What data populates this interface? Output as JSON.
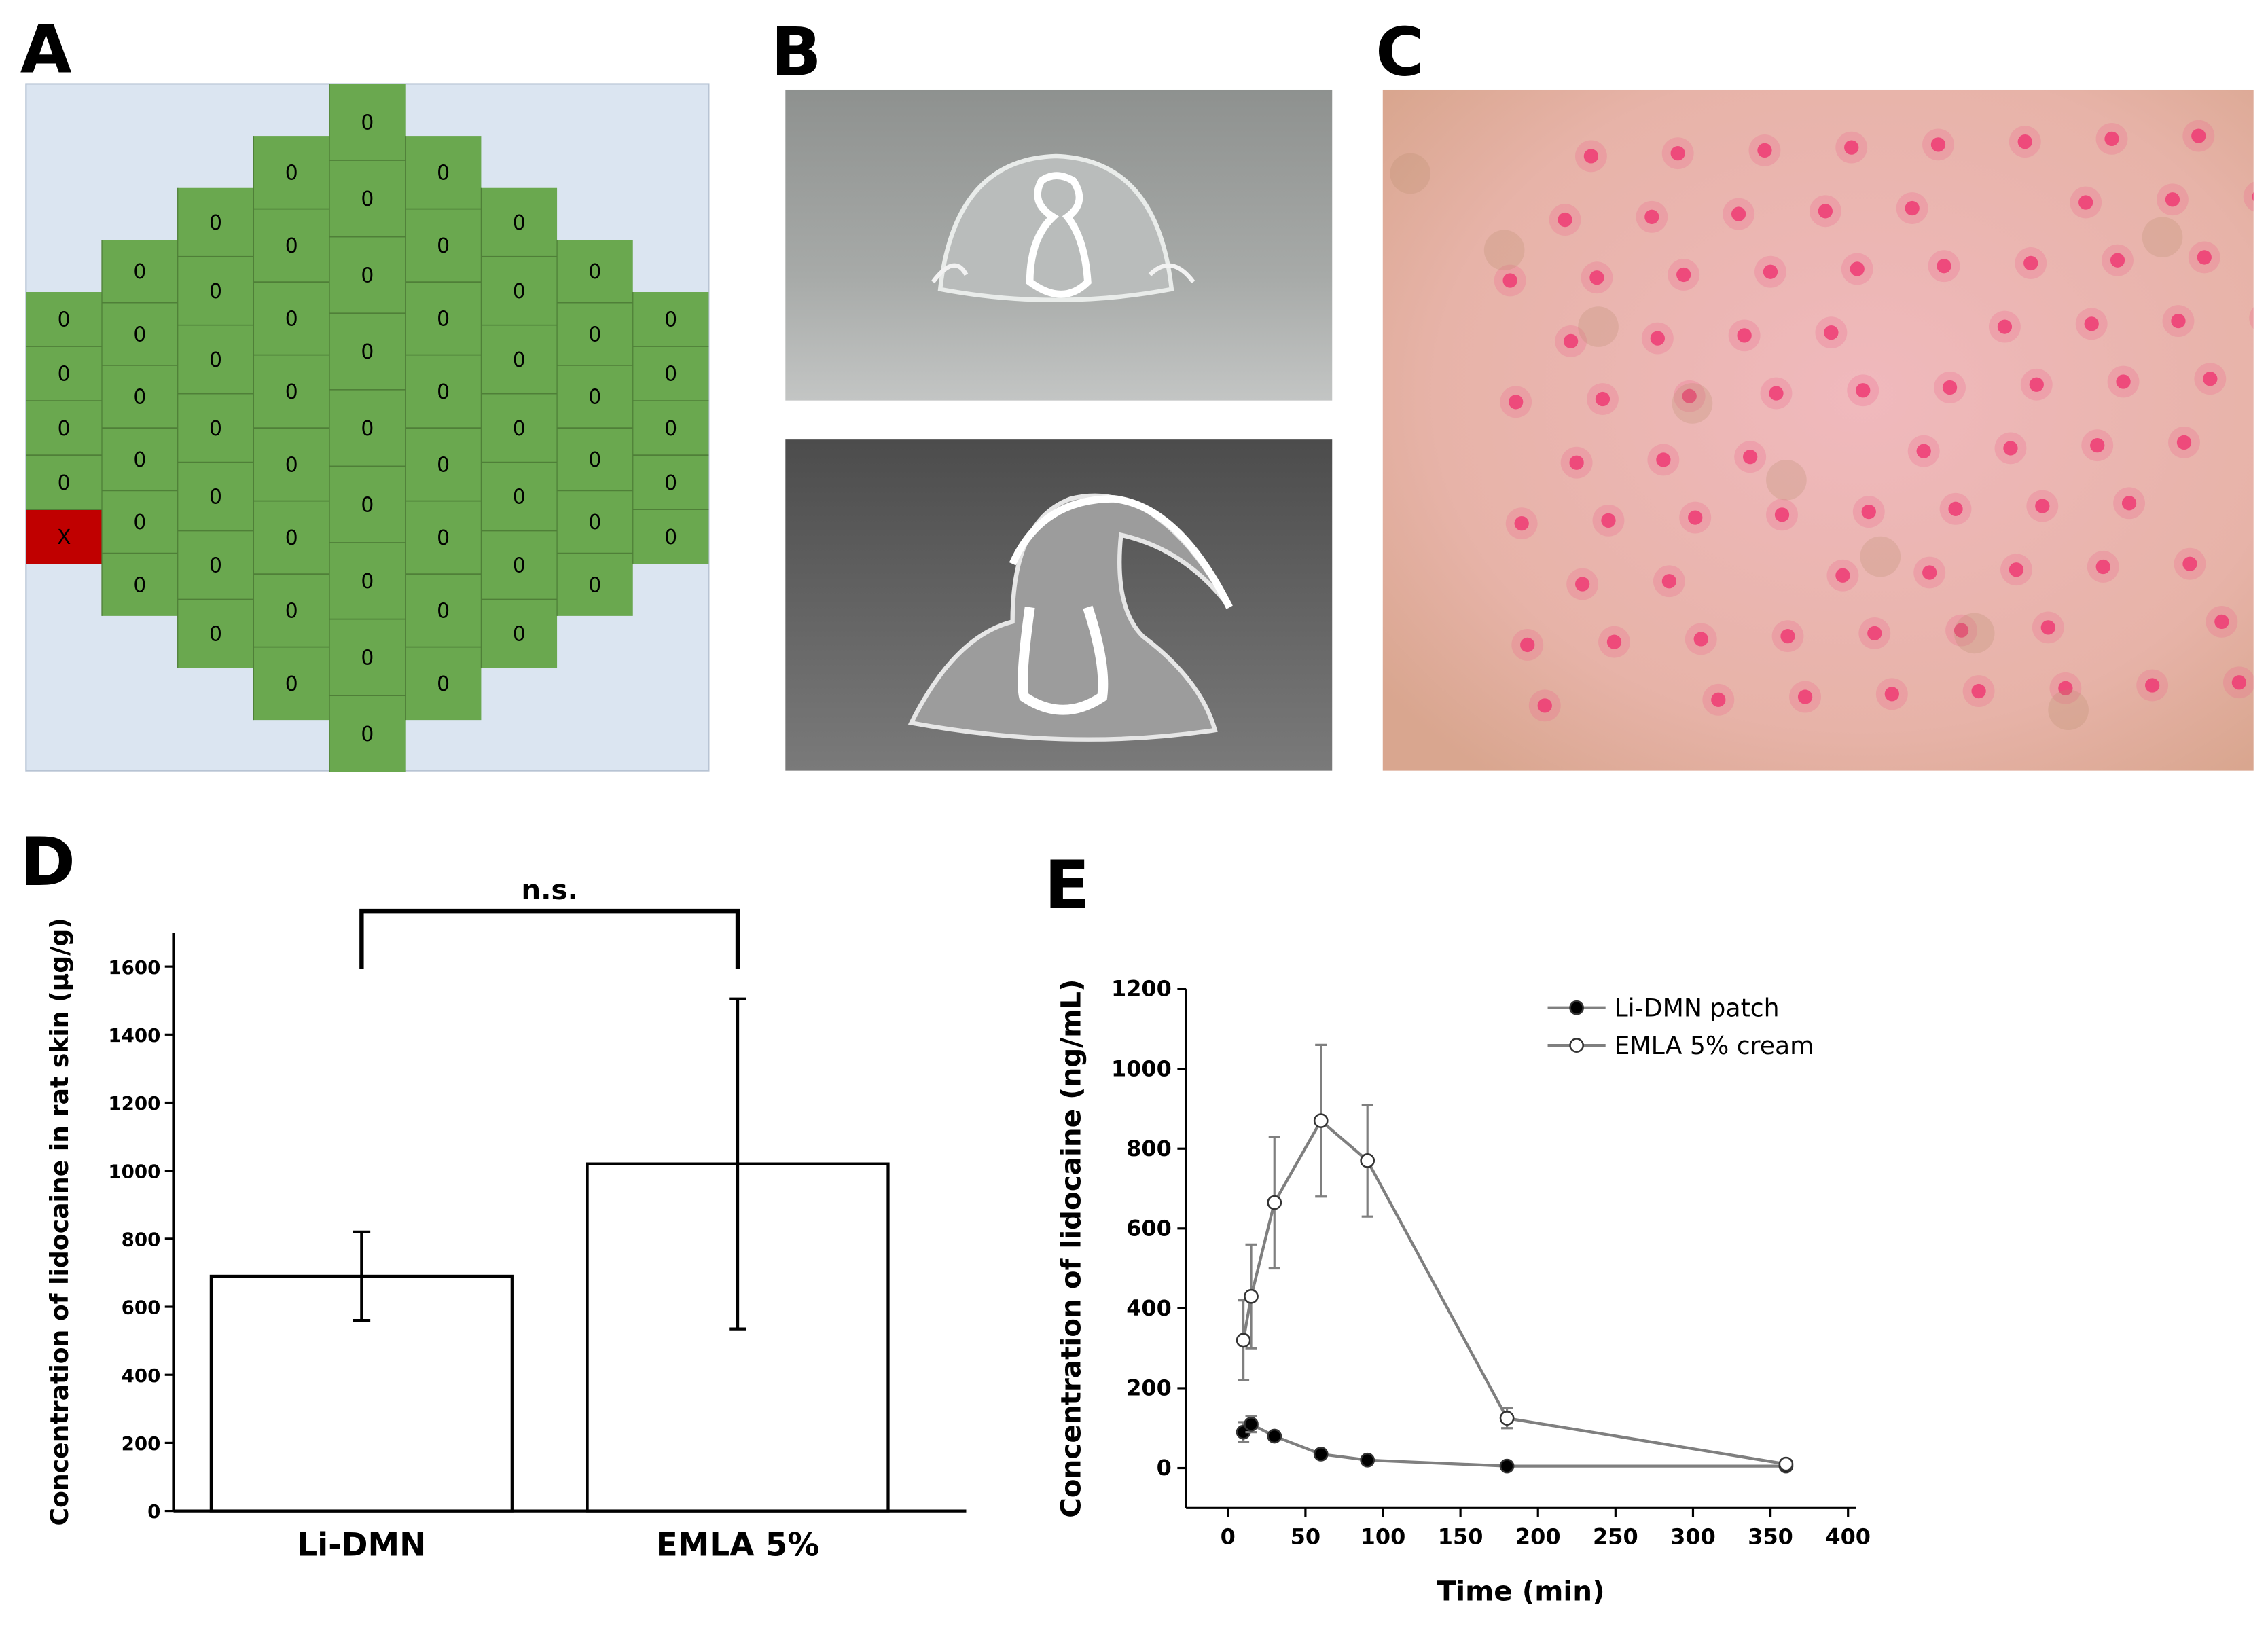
{
  "panel_labels": [
    "A",
    "B",
    "C",
    "D",
    "E"
  ],
  "panel_a": {
    "background": "#dbe5f1",
    "cell_color": "#6aa84f",
    "highlight": {
      "column": 0,
      "row": 4,
      "color": "#c00000"
    },
    "columns": [
      [
        "0",
        "0",
        "0",
        "0",
        "X"
      ],
      [
        "0",
        "0",
        "0",
        "0",
        "0",
        "0"
      ],
      [
        "0",
        "0",
        "0",
        "0",
        "0",
        "0",
        "0"
      ],
      [
        "0",
        "0",
        "0",
        "0",
        "0",
        "0",
        "0",
        "0"
      ],
      [
        "0",
        "0",
        "0",
        "0",
        "0",
        "0",
        "0",
        "0",
        "0"
      ],
      [
        "0",
        "0",
        "0",
        "0",
        "0",
        "0",
        "0",
        "0"
      ],
      [
        "0",
        "0",
        "0",
        "0",
        "0",
        "0",
        "0"
      ],
      [
        "0",
        "0",
        "0",
        "0",
        "0",
        "0"
      ],
      [
        "0",
        "0",
        "0",
        "0",
        "0"
      ]
    ]
  },
  "chart_data": [
    {
      "type": "bar",
      "categories": [
        "Li-DMN",
        "EMLA 5%"
      ],
      "values": [
        690,
        1020
      ],
      "errors": [
        130,
        485
      ],
      "color": "#ffffff",
      "edgecolor": "#000000",
      "ylabel": "Concentration of lidocaine in rat skin (μg/g)",
      "ylim": [
        0,
        1700
      ],
      "yticks": [
        0,
        200,
        400,
        600,
        800,
        1000,
        1200,
        1400,
        1600
      ],
      "annotation": "n.s."
    },
    {
      "type": "line",
      "x": [
        10,
        15,
        30,
        60,
        90,
        180,
        360
      ],
      "series": [
        {
          "name": "Li-DMN patch",
          "color": "#7f7f7f",
          "marker_fill": "#000000",
          "values": [
            90,
            110,
            80,
            35,
            20,
            5,
            5
          ],
          "errors": [
            25,
            20,
            10,
            8,
            5,
            3,
            3
          ]
        },
        {
          "name": "EMLA 5% cream",
          "color": "#7f7f7f",
          "marker_fill": "#ffffff",
          "values": [
            320,
            430,
            665,
            870,
            770,
            125,
            10
          ],
          "errors": [
            100,
            130,
            165,
            190,
            140,
            25,
            10
          ]
        }
      ],
      "xlabel": "Time (min)",
      "ylabel": "Concentration of lidocaine (ng/mL)",
      "xlim": [
        -27,
        405
      ],
      "ylim": [
        -100,
        1200
      ],
      "xticks": [
        0,
        50,
        100,
        150,
        200,
        250,
        300,
        350,
        400
      ],
      "yticks": [
        0,
        200,
        400,
        600,
        800,
        1000,
        1200
      ],
      "legend": "upper right"
    }
  ]
}
